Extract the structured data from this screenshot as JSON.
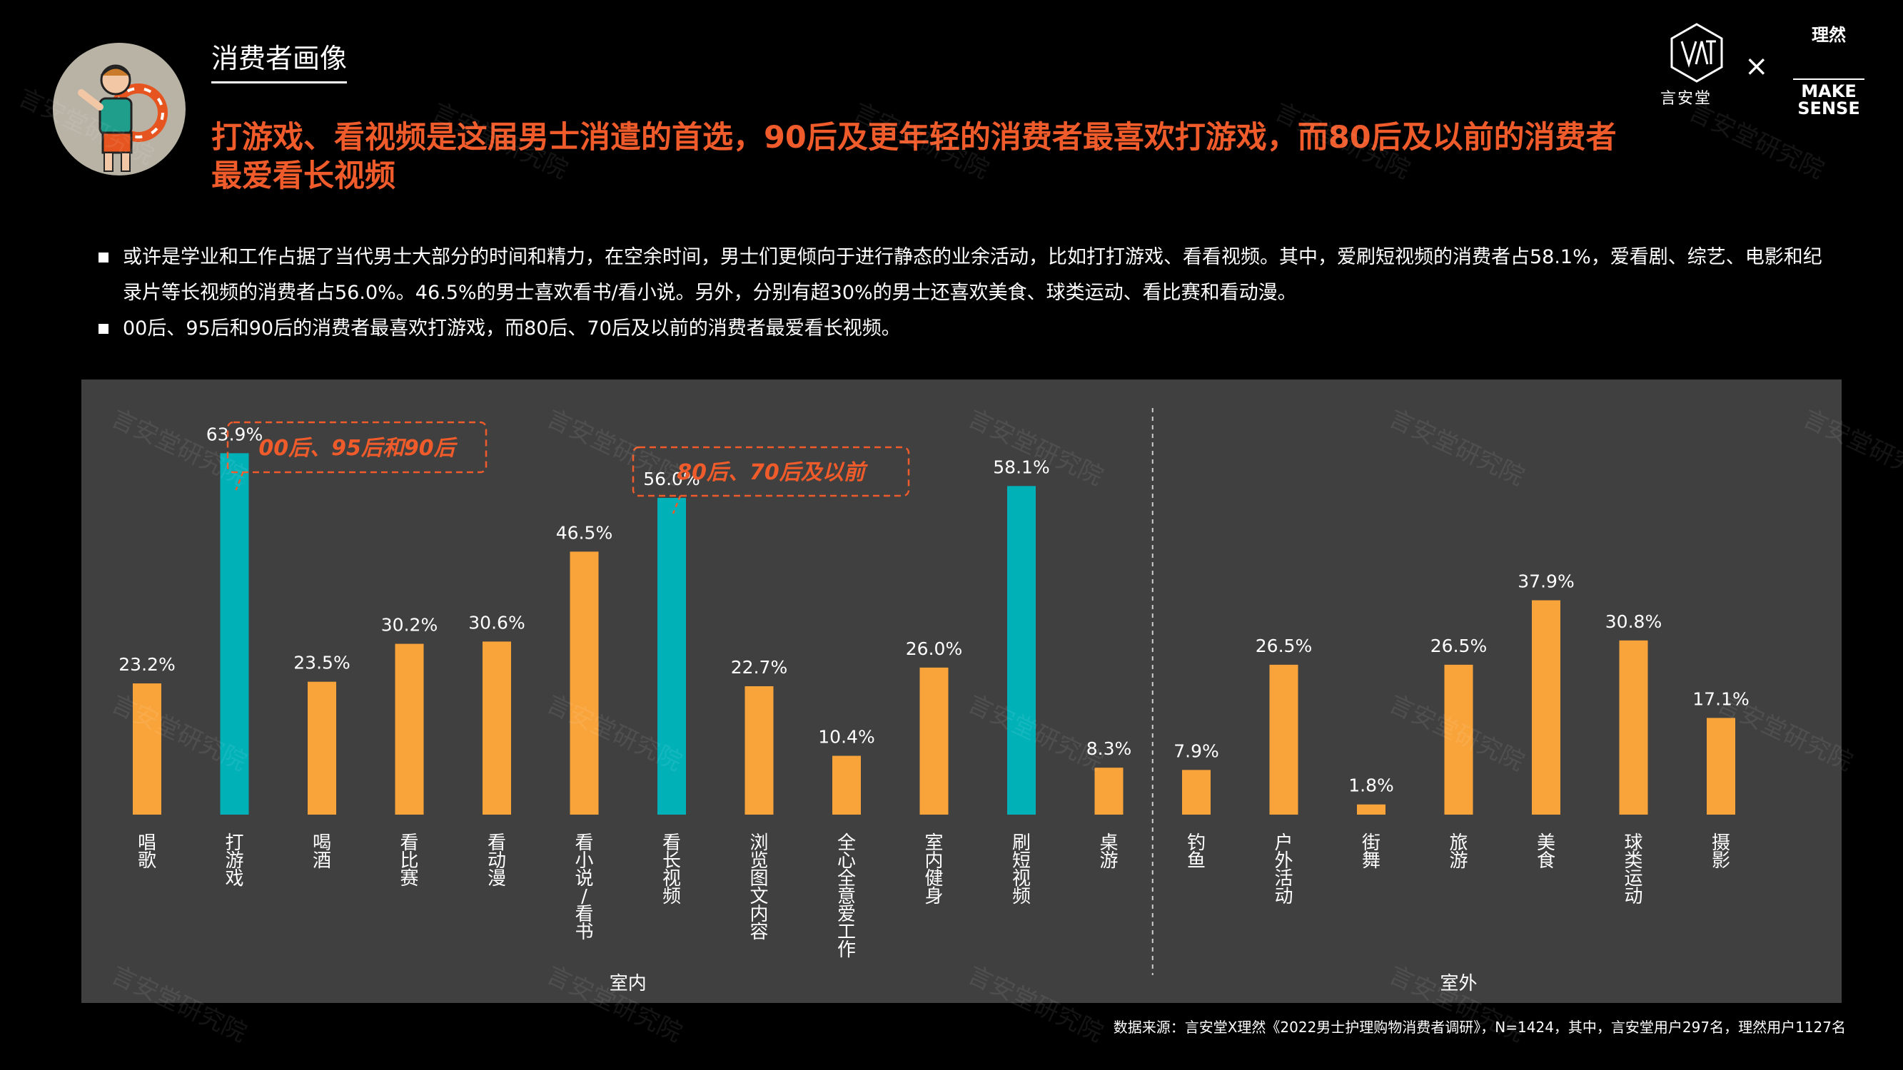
{
  "header": {
    "section_title": "消费者画像",
    "headline": "打游戏、看视频是这届男士消遣的首选，90后及更年轻的消费者最喜欢打游戏，而80后及以前的消费者最爱看长视频"
  },
  "logos": {
    "yat_text": "言安堂",
    "times": "×",
    "lr_text": "理然",
    "ms_line1": "MAKE",
    "ms_line2": "SENSE"
  },
  "bullets": [
    "或许是学业和工作占据了当代男士大部分的时间和精力，在空余时间，男士们更倾向于进行静态的业余活动，比如打打游戏、看看视频。其中，爱刷短视频的消费者占58.1%，爱看剧、综艺、电影和纪录片等长视频的消费者占56.0%。46.5%的男士喜欢看书/看小说。另外，分别有超30%的男士还喜欢美食、球类运动、看比赛和看动漫。",
    "00后、95后和90后的消费者最喜欢打游戏，而80后、70后及以前的消费者最爱看长视频。"
  ],
  "source": "数据来源：言安堂X理然《2022男士护理购物消费者调研》，N=1424，其中，言安堂用户297名，理然用户1127名",
  "watermark": "言安堂研究院",
  "chart_data": {
    "type": "bar",
    "categories": [
      "唱歌",
      "打游戏",
      "喝酒",
      "看比赛",
      "看动漫",
      "看小说/看书",
      "看长视频",
      "浏览图文内容",
      "全心全意爱工作",
      "室内健身",
      "刷短视频",
      "桌游",
      "钓鱼",
      "户外活动",
      "街舞",
      "旅游",
      "美食",
      "球类运动",
      "摄影"
    ],
    "values": [
      23.2,
      63.9,
      23.5,
      30.2,
      30.6,
      46.5,
      56.0,
      22.7,
      10.4,
      26.0,
      58.1,
      8.3,
      7.9,
      26.5,
      1.8,
      26.5,
      37.9,
      30.8,
      17.1
    ],
    "value_labels": [
      "23.2%",
      "63.9%",
      "23.5%",
      "30.2%",
      "30.6%",
      "46.5%",
      "56.0%",
      "22.7%",
      "10.4%",
      "26.0%",
      "58.1%",
      "8.3%",
      "7.9%",
      "26.5%",
      "1.8%",
      "26.5%",
      "37.9%",
      "30.8%",
      "17.1%"
    ],
    "highlight": [
      false,
      true,
      false,
      false,
      false,
      false,
      true,
      false,
      false,
      false,
      true,
      false,
      false,
      false,
      false,
      false,
      false,
      false,
      false
    ],
    "groups": [
      {
        "name": "室内",
        "start": 0,
        "end": 11
      },
      {
        "name": "室外",
        "start": 12,
        "end": 18
      }
    ],
    "callouts": [
      {
        "text": "00后、95后和90后",
        "target": 1
      },
      {
        "text": "80后、70后及以前",
        "target": 6
      }
    ],
    "colors": {
      "bar": "#f9a43b",
      "highlight": "#00b1b8",
      "callout": "#ef5b2a",
      "panel": "#404040"
    },
    "ylim": [
      0,
      70
    ],
    "grid": false,
    "xlabel": "",
    "ylabel": ""
  }
}
